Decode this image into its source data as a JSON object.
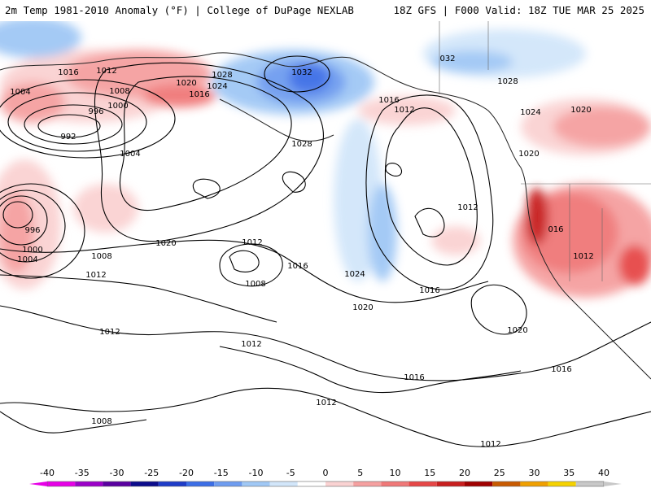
{
  "header": {
    "title_left": "2m Temp 1981-2010 Anomaly (°F) | College of DuPage NEXLAB",
    "title_right": "18Z GFS | F000 Valid: 18Z TUE MAR 25 2025"
  },
  "colors": {
    "background": "#ffffff",
    "contour": "#000000",
    "coastline": "#222222"
  },
  "legend": {
    "ticks": [
      "-40",
      "-35",
      "-30",
      "-25",
      "-20",
      "-15",
      "-10",
      "-5",
      "0",
      "5",
      "10",
      "15",
      "20",
      "25",
      "30",
      "35",
      "40"
    ],
    "colors": [
      "#e600e6",
      "#9b00c8",
      "#5a00a0",
      "#0c0c8c",
      "#1e3cc8",
      "#3c6ee6",
      "#6e9cf0",
      "#a0c8f5",
      "#d2e6fa",
      "#ffffff",
      "#fad2d2",
      "#f5a0a0",
      "#f07878",
      "#e64646",
      "#c81e1e",
      "#a00000",
      "#c85a00",
      "#f0a000",
      "#f5d200",
      "#c8c8c8"
    ]
  },
  "isobars": [
    {
      "label": "1016"
    },
    {
      "label": "1012"
    },
    {
      "label": "1004"
    },
    {
      "label": "1008"
    },
    {
      "label": "996"
    },
    {
      "label": "1000"
    },
    {
      "label": "992"
    },
    {
      "label": "1004"
    },
    {
      "label": "1020"
    },
    {
      "label": "1024"
    },
    {
      "label": "1028"
    },
    {
      "label": "1016"
    },
    {
      "label": "1032"
    },
    {
      "label": "1028"
    },
    {
      "label": "1016"
    },
    {
      "label": "1012"
    },
    {
      "label": "032"
    },
    {
      "label": "1028"
    },
    {
      "label": "1024"
    },
    {
      "label": "1020"
    },
    {
      "label": "1020"
    },
    {
      "label": "1012"
    },
    {
      "label": "016"
    },
    {
      "label": "1012"
    },
    {
      "label": "996"
    },
    {
      "label": "1000"
    },
    {
      "label": "1004"
    },
    {
      "label": "1008"
    },
    {
      "label": "1012"
    },
    {
      "label": "1020"
    },
    {
      "label": "1012"
    },
    {
      "label": "1016"
    },
    {
      "label": "1008"
    },
    {
      "label": "1024"
    },
    {
      "label": "1016"
    },
    {
      "label": "1020"
    },
    {
      "label": "1020"
    },
    {
      "label": "1012"
    },
    {
      "label": "1012"
    },
    {
      "label": "1016"
    },
    {
      "label": "1016"
    },
    {
      "label": "1012"
    },
    {
      "label": "1008"
    },
    {
      "label": "1012"
    }
  ]
}
